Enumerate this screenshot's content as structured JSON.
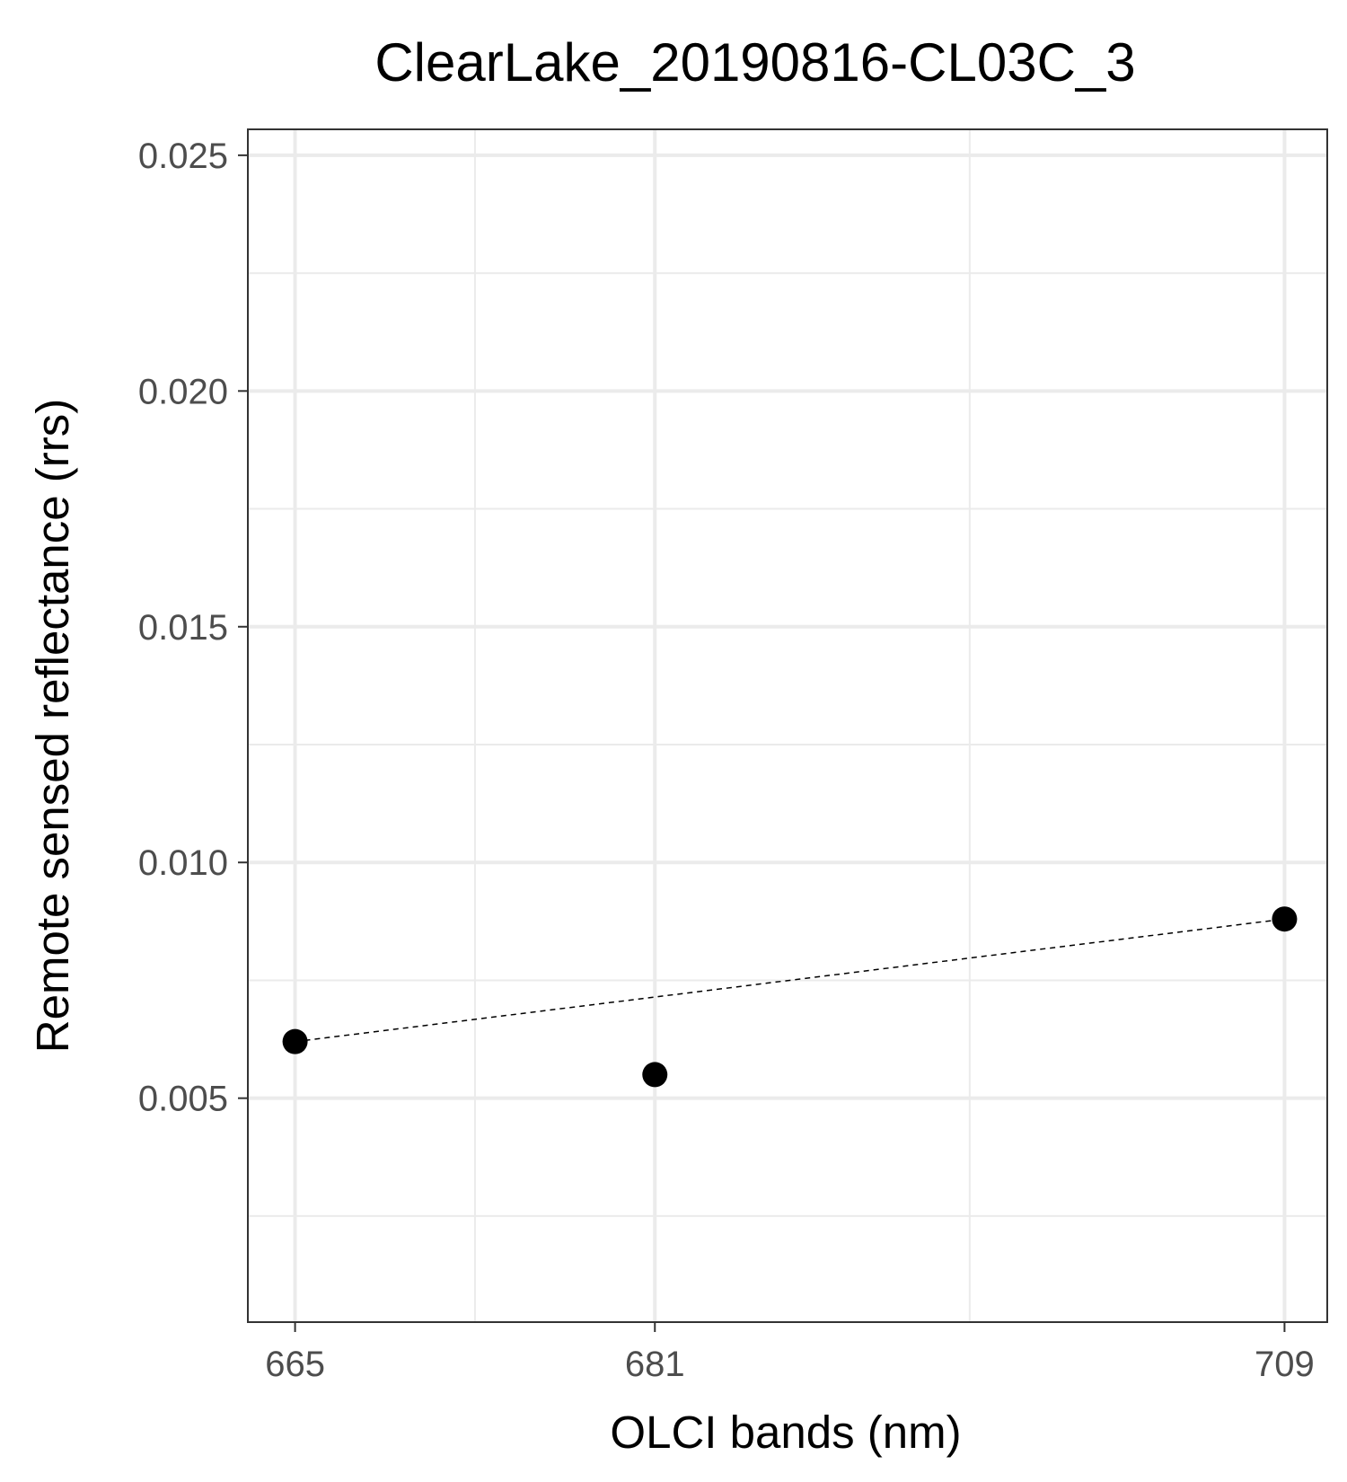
{
  "chart_data": {
    "type": "scatter",
    "title": "ClearLake_20190816-CL03C_3",
    "xlabel": "OLCI bands (nm)",
    "ylabel": "Remote sensed reflectance (rrs)",
    "x_ticks": [
      {
        "value": 665,
        "label": "665"
      },
      {
        "value": 681,
        "label": "681"
      },
      {
        "value": 709,
        "label": "709"
      }
    ],
    "y_ticks": [
      {
        "value": 0.005,
        "label": "0.005"
      },
      {
        "value": 0.01,
        "label": "0.010"
      },
      {
        "value": 0.015,
        "label": "0.015"
      },
      {
        "value": 0.02,
        "label": "0.020"
      },
      {
        "value": 0.025,
        "label": "0.025"
      }
    ],
    "xlim": [
      662.9,
      710.9
    ],
    "ylim": [
      0.00025,
      0.02555
    ],
    "grid": true,
    "points": [
      {
        "x": 665,
        "y": 0.0062
      },
      {
        "x": 681,
        "y": 0.0055
      },
      {
        "x": 709,
        "y": 0.0088
      }
    ],
    "dashed_line": [
      {
        "x": 665,
        "y": 0.0062
      },
      {
        "x": 709,
        "y": 0.0088
      }
    ],
    "colors": {
      "points": "#000000",
      "grid": "#ebebeb",
      "panel_border": "#333333",
      "tick_label": "#4d4d4d"
    }
  }
}
